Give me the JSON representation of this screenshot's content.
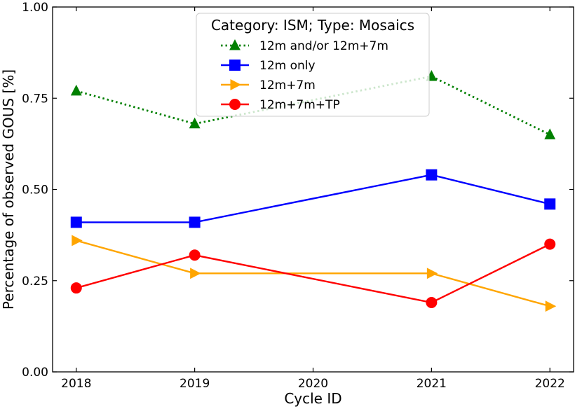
{
  "chart_data": {
    "type": "line",
    "xlabel": "Cycle ID",
    "ylabel": "Percentage of observed GOUS [%]",
    "x_ticks": [
      "2018",
      "2019",
      "2020",
      "2021",
      "2022"
    ],
    "y_ticks": [
      "0.00",
      "0.25",
      "0.50",
      "0.75",
      "1.00"
    ],
    "xlim": [
      2017.8,
      2022.2
    ],
    "ylim": [
      0.0,
      1.0
    ],
    "grid": false,
    "legend_title": "Category: ISM; Type: Mosaics",
    "legend_position": "top-center",
    "series": [
      {
        "name": "12m and/or 12m+7m",
        "color": "#008000",
        "marker": "triangle-up",
        "linestyle": "dotted",
        "x": [
          2018,
          2019,
          2021,
          2022
        ],
        "y": [
          0.77,
          0.68,
          0.81,
          0.65
        ]
      },
      {
        "name": "12m only",
        "color": "#0000ff",
        "marker": "square",
        "linestyle": "solid",
        "x": [
          2018,
          2019,
          2021,
          2022
        ],
        "y": [
          0.41,
          0.41,
          0.54,
          0.46
        ]
      },
      {
        "name": "12m+7m",
        "color": "#ffa500",
        "marker": "triangle-right",
        "linestyle": "solid",
        "x": [
          2018,
          2019,
          2021,
          2022
        ],
        "y": [
          0.36,
          0.27,
          0.27,
          0.18
        ]
      },
      {
        "name": "12m+7m+TP",
        "color": "#ff0000",
        "marker": "circle",
        "linestyle": "solid",
        "x": [
          2018,
          2019,
          2021,
          2022
        ],
        "y": [
          0.23,
          0.32,
          0.19,
          0.35
        ]
      }
    ]
  }
}
